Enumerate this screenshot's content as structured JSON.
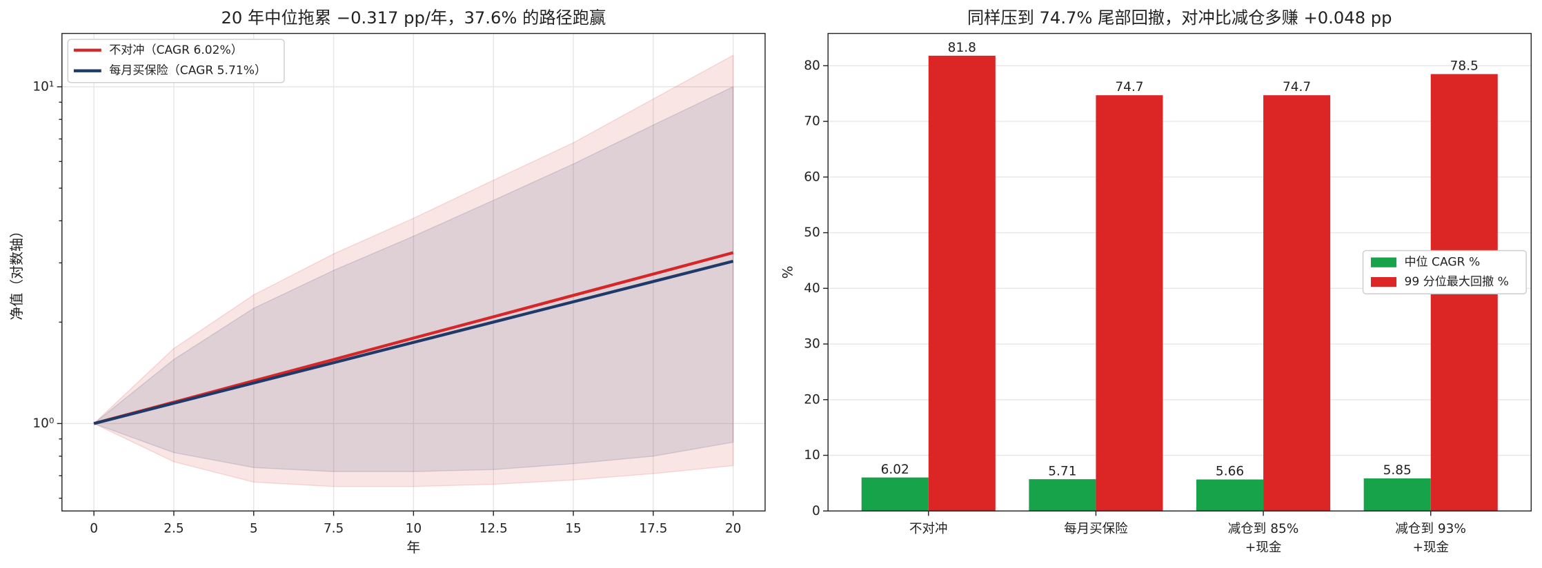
{
  "chart_data": [
    {
      "type": "line",
      "title": "20 年中位拖累 −0.317 pp/年，37.6% 的路径跑赢",
      "xlabel": "年",
      "ylabel": "净值（对数轴）",
      "x": [
        0,
        2.5,
        5,
        7.5,
        10,
        12.5,
        15,
        17.5,
        20
      ],
      "series": [
        {
          "name": "不对冲（CAGR 6.02%）",
          "color": "#d62728",
          "values": [
            1,
            1.157,
            1.339,
            1.549,
            1.794,
            2.075,
            2.402,
            2.779,
            3.216
          ],
          "band_upper": [
            1,
            1.67,
            2.41,
            3.19,
            4.07,
            5.28,
            6.82,
            9.2,
            12.4
          ],
          "band_lower": [
            1,
            0.77,
            0.67,
            0.65,
            0.65,
            0.66,
            0.68,
            0.71,
            0.75
          ]
        },
        {
          "name": "每月买保险（CAGR 5.71%）",
          "color": "#1f3a68",
          "values": [
            1,
            1.149,
            1.32,
            1.516,
            1.742,
            2.001,
            2.299,
            2.641,
            3.034
          ],
          "band_upper": [
            1,
            1.55,
            2.2,
            2.85,
            3.6,
            4.6,
            5.9,
            7.7,
            10.0
          ],
          "band_lower": [
            1,
            0.82,
            0.74,
            0.72,
            0.72,
            0.73,
            0.76,
            0.8,
            0.88
          ]
        }
      ],
      "xlim": [
        -1,
        21
      ],
      "xticks": [
        0,
        2.5,
        5,
        7.5,
        10,
        12.5,
        15,
        17.5,
        20
      ],
      "ylim": [
        0.55,
        14.4
      ],
      "log_scale": true,
      "yticks": [
        {
          "value": 1,
          "label": "10⁰"
        },
        {
          "value": 10,
          "label": "10¹"
        }
      ],
      "yminorticks": [
        0.6,
        0.7,
        0.8,
        0.9,
        2,
        3,
        4,
        5,
        6,
        7,
        8,
        9
      ],
      "grid": true,
      "legend": "upper left"
    },
    {
      "type": "bar",
      "title": "同样压到 74.7% 尾部回撤，对冲比减仓多赚 +0.048 pp",
      "ylabel": "%",
      "categories": [
        "不对冲",
        "每月买保险",
        "减仓到 85%\n+现金",
        "减仓到 93%\n+现金"
      ],
      "series": [
        {
          "name": "中位 CAGR %",
          "color": "#16a34a",
          "values": [
            6.02,
            5.71,
            5.66,
            5.85
          ]
        },
        {
          "name": "99 分位最大回撤 %",
          "color": "#dc2626",
          "values": [
            81.8,
            74.7,
            74.7,
            78.5
          ]
        }
      ],
      "ylim": [
        0,
        85.8
      ],
      "yticks": [
        0,
        10,
        20,
        30,
        40,
        50,
        60,
        70,
        80
      ],
      "grid": true,
      "legend": "center right"
    }
  ]
}
